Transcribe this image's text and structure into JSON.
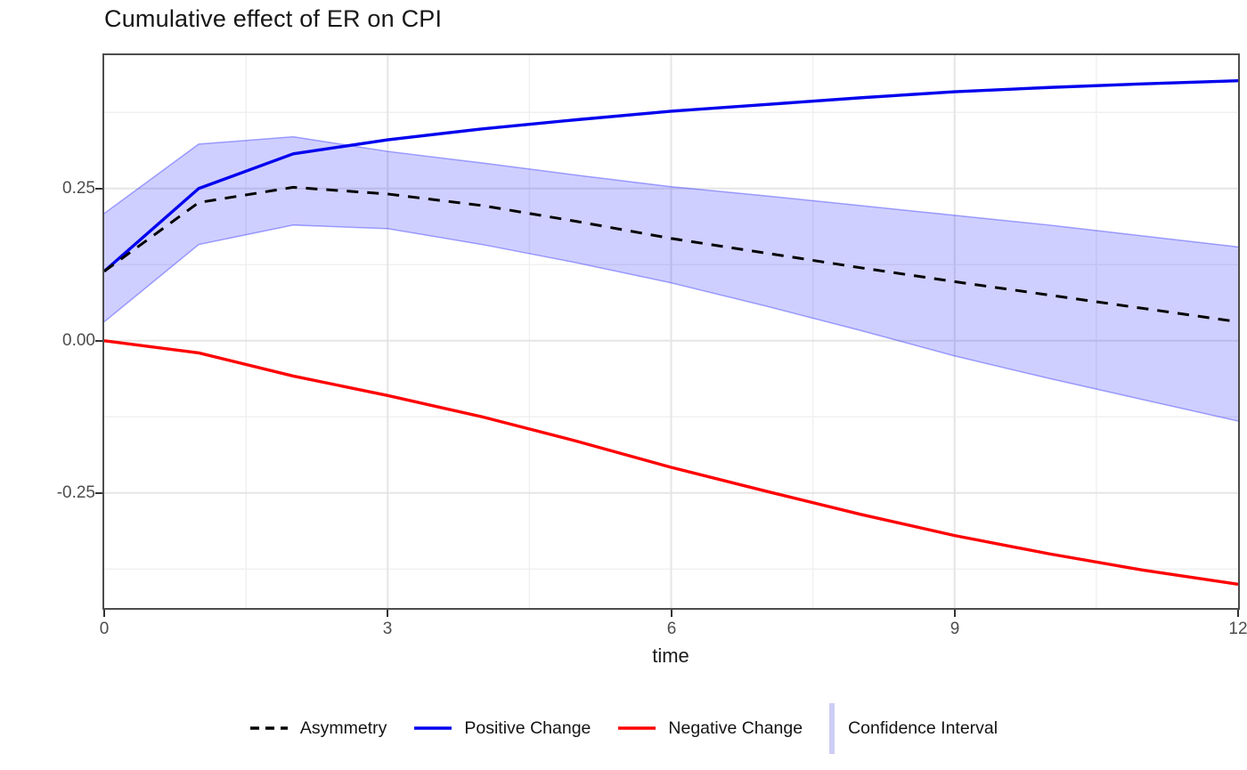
{
  "title": "Cumulative effect of ER on CPI",
  "chart_data": {
    "type": "line",
    "title": "Cumulative effect of ER on CPI",
    "xlabel": "time",
    "ylabel": "",
    "x": [
      0,
      1,
      2,
      3,
      4,
      5,
      6,
      7,
      8,
      9,
      10,
      11,
      12
    ],
    "xlim": [
      0,
      12
    ],
    "ylim": [
      -0.439,
      0.469
    ],
    "xticks": [
      0,
      3,
      6,
      9,
      12
    ],
    "xtick_labels": [
      "0",
      "3",
      "6",
      "9",
      "12"
    ],
    "yticks": [
      0.25,
      0.0,
      -0.25
    ],
    "ytick_labels": [
      "0.25",
      "0.00",
      "-0.25"
    ],
    "grid": {
      "shown": true,
      "major_x": [
        3,
        6,
        9
      ],
      "minor_x": [
        1.5,
        4.5,
        7.5,
        10.5
      ],
      "major_y": [
        0.25,
        0.0,
        -0.25
      ],
      "minor_y": [
        0.375,
        0.125,
        -0.125,
        -0.375
      ],
      "major_color": "#e5e5e5",
      "minor_color": "#f0f0f0"
    },
    "legend_position": "bottom",
    "series": [
      {
        "name": "Asymmetry",
        "type": "line",
        "linestyle": "dashed",
        "color": "#000000",
        "values": [
          0.114,
          0.227,
          0.252,
          0.241,
          0.222,
          0.196,
          0.168,
          0.144,
          0.12,
          0.097,
          0.075,
          0.053,
          0.031
        ]
      },
      {
        "name": "Positive Change",
        "type": "line",
        "linestyle": "solid",
        "color": "#0000ee",
        "values": [
          0.114,
          0.25,
          0.307,
          0.33,
          0.348,
          0.363,
          0.377,
          0.388,
          0.399,
          0.409,
          0.416,
          0.422,
          0.427
        ]
      },
      {
        "name": "Negative Change",
        "type": "line",
        "linestyle": "solid",
        "color": "#fe0000",
        "values": [
          0.0,
          -0.02,
          -0.058,
          -0.09,
          -0.125,
          -0.165,
          -0.208,
          -0.247,
          -0.285,
          -0.32,
          -0.35,
          -0.377,
          -0.4
        ]
      }
    ],
    "ribbon": {
      "name": "Confidence Interval",
      "fill": "rgba(0,0,255,0.19)",
      "edge_color": "rgba(0,0,255,0.33)",
      "upper": [
        0.209,
        0.323,
        0.335,
        0.311,
        0.292,
        0.272,
        0.253,
        0.238,
        0.222,
        0.206,
        0.19,
        0.172,
        0.154
      ],
      "lower": [
        0.031,
        0.158,
        0.19,
        0.184,
        0.158,
        0.128,
        0.095,
        0.057,
        0.017,
        -0.025,
        -0.062,
        -0.097,
        -0.132
      ]
    }
  },
  "legend": {
    "items": [
      {
        "label": "Asymmetry",
        "swatch": "dashed-line",
        "color": "#000000"
      },
      {
        "label": "Positive Change",
        "swatch": "line",
        "color": "#0000ee"
      },
      {
        "label": "Negative Change",
        "swatch": "line",
        "color": "#fe0000"
      },
      {
        "label": "Confidence Interval",
        "swatch": "bar",
        "color": "#ccccf5"
      }
    ]
  },
  "colors": {
    "panel_border": "#4d4d4d",
    "tick_label": "#4d4d4d",
    "title_text": "#171717"
  }
}
